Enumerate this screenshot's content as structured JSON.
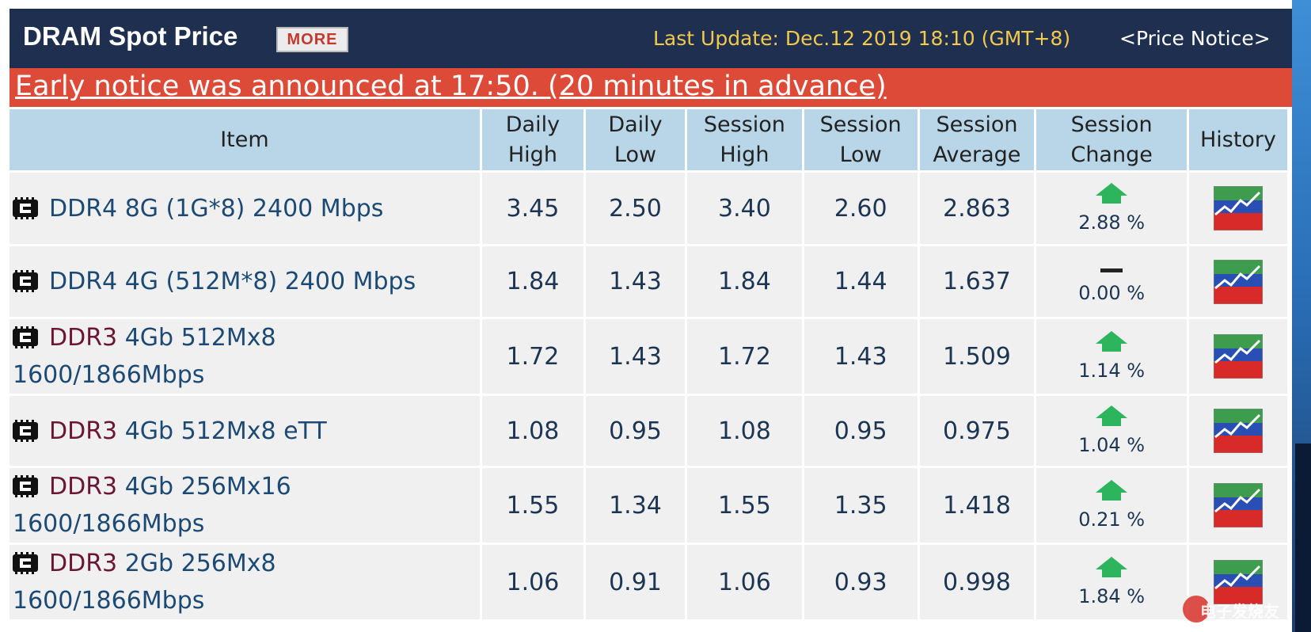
{
  "header": {
    "title": "DRAM Spot Price",
    "more_label": "MORE",
    "last_update": "Last Update: Dec.12 2019 18:10 (GMT+8)",
    "price_notice": "<Price Notice>"
  },
  "notice": {
    "text": "Early notice was announced at 17:50. (20 minutes in advance)"
  },
  "table": {
    "columns": [
      {
        "line1": "Item",
        "line2": ""
      },
      {
        "line1": "Daily",
        "line2": "High"
      },
      {
        "line1": "Daily",
        "line2": "Low"
      },
      {
        "line1": "Session",
        "line2": "High"
      },
      {
        "line1": "Session",
        "line2": "Low"
      },
      {
        "line1": "Session",
        "line2": "Average"
      },
      {
        "line1": "Session",
        "line2": "Change"
      },
      {
        "line1": "History",
        "line2": ""
      }
    ],
    "rows": [
      {
        "brand": "DDR4",
        "spec": "8G (1G*8) 2400 Mbps",
        "spec2": "",
        "daily_high": "3.45",
        "daily_low": "2.50",
        "session_high": "3.40",
        "session_low": "2.60",
        "session_average": "2.863",
        "change": "2.88 %",
        "direction": "up"
      },
      {
        "brand": "DDR4",
        "spec": "4G (512M*8) 2400 Mbps",
        "spec2": "",
        "daily_high": "1.84",
        "daily_low": "1.43",
        "session_high": "1.84",
        "session_low": "1.44",
        "session_average": "1.637",
        "change": "0.00 %",
        "direction": "flat"
      },
      {
        "brand": "DDR3",
        "spec": "4Gb 512Mx8",
        "spec2": "1600/1866Mbps",
        "daily_high": "1.72",
        "daily_low": "1.43",
        "session_high": "1.72",
        "session_low": "1.43",
        "session_average": "1.509",
        "change": "1.14 %",
        "direction": "up"
      },
      {
        "brand": "DDR3",
        "spec": "4Gb 512Mx8 eTT",
        "spec2": "",
        "daily_high": "1.08",
        "daily_low": "0.95",
        "session_high": "1.08",
        "session_low": "0.95",
        "session_average": "0.975",
        "change": "1.04 %",
        "direction": "up"
      },
      {
        "brand": "DDR3",
        "spec": "4Gb 256Mx16",
        "spec2": "1600/1866Mbps",
        "daily_high": "1.55",
        "daily_low": "1.34",
        "session_high": "1.55",
        "session_low": "1.35",
        "session_average": "1.418",
        "change": "0.21 %",
        "direction": "up"
      },
      {
        "brand": "DDR3",
        "spec": "2Gb 256Mx8",
        "spec2": "1600/1866Mbps",
        "daily_high": "1.06",
        "daily_low": "0.91",
        "session_high": "1.06",
        "session_low": "0.93",
        "session_average": "0.998",
        "change": "1.84 %",
        "direction": "up"
      }
    ]
  },
  "colors": {
    "header_bg": "#1e2f4f",
    "notice_bg": "#de4a38",
    "column_header_bg": "#b8d6e8",
    "row_bg": "#f0f0f0",
    "up_arrow": "#2db55d",
    "update_text": "#f2c94c",
    "ddr3_text": "#6b1635",
    "ddr4_text": "#1c4a74"
  },
  "icons": {
    "item_icon": "memory-chip-icon",
    "history_icon": "history-chart-icon",
    "change_up": "arrow-up-icon",
    "change_flat": "dash-icon"
  },
  "watermark": {
    "text": "电子发烧友"
  }
}
